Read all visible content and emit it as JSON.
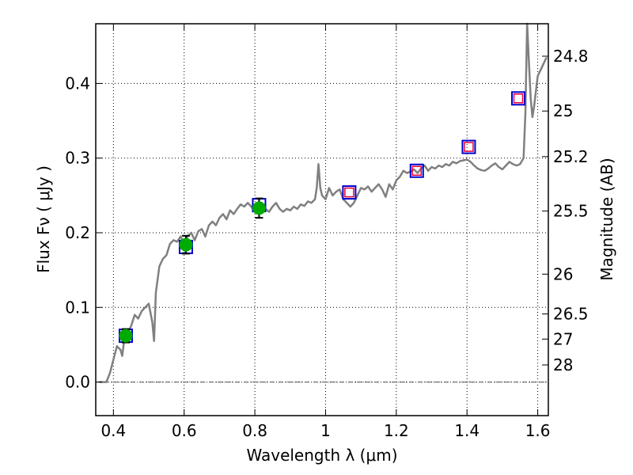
{
  "chart_data": {
    "type": "line",
    "xlabel": "Wavelength  λ (μm)",
    "ylabel_left": "Flux  Fν  ( μJy )",
    "ylabel_right": "Magnitude (AB)",
    "xlim": [
      0.35,
      1.63
    ],
    "ylim": [
      -0.045,
      0.48
    ],
    "x_ticks": [
      {
        "value": 0.4,
        "label": "0.4"
      },
      {
        "value": 0.6,
        "label": "0.6"
      },
      {
        "value": 0.8,
        "label": "0.8"
      },
      {
        "value": 1.0,
        "label": "1"
      },
      {
        "value": 1.2,
        "label": "1.2"
      },
      {
        "value": 1.4,
        "label": "1.4"
      },
      {
        "value": 1.6,
        "label": "1.6"
      }
    ],
    "y_ticks": [
      {
        "value": 0.0,
        "label": "0.0"
      },
      {
        "value": 0.1,
        "label": "0.1"
      },
      {
        "value": 0.2,
        "label": "0.2"
      },
      {
        "value": 0.3,
        "label": "0.3"
      },
      {
        "value": 0.4,
        "label": "0.4"
      }
    ],
    "mag_ticks": [
      {
        "value": 24.8,
        "label": "24.8"
      },
      {
        "value": 25.0,
        "label": "25"
      },
      {
        "value": 25.2,
        "label": "25.2"
      },
      {
        "value": 25.5,
        "label": "25.5"
      },
      {
        "value": 26.0,
        "label": "26"
      },
      {
        "value": 26.5,
        "label": "26.5"
      },
      {
        "value": 27.0,
        "label": "27"
      },
      {
        "value": 28.0,
        "label": "28"
      }
    ],
    "grid": true,
    "zero_line": true,
    "colors": {
      "spectrum": "#808080",
      "model_box": "#0000cc",
      "nir_box": "#e8003a",
      "measured_point": "#00aa00",
      "error_bar": "#000000"
    },
    "spectrum": [
      [
        0.36,
        0.0
      ],
      [
        0.38,
        0.0
      ],
      [
        0.39,
        0.012
      ],
      [
        0.4,
        0.03
      ],
      [
        0.41,
        0.048
      ],
      [
        0.42,
        0.043
      ],
      [
        0.425,
        0.035
      ],
      [
        0.43,
        0.055
      ],
      [
        0.44,
        0.065
      ],
      [
        0.45,
        0.075
      ],
      [
        0.46,
        0.09
      ],
      [
        0.47,
        0.085
      ],
      [
        0.48,
        0.095
      ],
      [
        0.49,
        0.1
      ],
      [
        0.5,
        0.105
      ],
      [
        0.51,
        0.08
      ],
      [
        0.515,
        0.055
      ],
      [
        0.52,
        0.12
      ],
      [
        0.53,
        0.155
      ],
      [
        0.54,
        0.165
      ],
      [
        0.55,
        0.17
      ],
      [
        0.56,
        0.185
      ],
      [
        0.57,
        0.19
      ],
      [
        0.58,
        0.188
      ],
      [
        0.59,
        0.195
      ],
      [
        0.6,
        0.185
      ],
      [
        0.61,
        0.195
      ],
      [
        0.62,
        0.2
      ],
      [
        0.63,
        0.19
      ],
      [
        0.64,
        0.202
      ],
      [
        0.65,
        0.205
      ],
      [
        0.66,
        0.195
      ],
      [
        0.67,
        0.21
      ],
      [
        0.68,
        0.215
      ],
      [
        0.69,
        0.21
      ],
      [
        0.7,
        0.22
      ],
      [
        0.71,
        0.225
      ],
      [
        0.72,
        0.218
      ],
      [
        0.73,
        0.23
      ],
      [
        0.74,
        0.225
      ],
      [
        0.75,
        0.232
      ],
      [
        0.76,
        0.238
      ],
      [
        0.77,
        0.235
      ],
      [
        0.78,
        0.24
      ],
      [
        0.79,
        0.235
      ],
      [
        0.8,
        0.228
      ],
      [
        0.81,
        0.235
      ],
      [
        0.82,
        0.24
      ],
      [
        0.83,
        0.232
      ],
      [
        0.84,
        0.228
      ],
      [
        0.85,
        0.235
      ],
      [
        0.86,
        0.24
      ],
      [
        0.87,
        0.232
      ],
      [
        0.88,
        0.228
      ],
      [
        0.89,
        0.232
      ],
      [
        0.9,
        0.23
      ],
      [
        0.91,
        0.235
      ],
      [
        0.92,
        0.232
      ],
      [
        0.93,
        0.238
      ],
      [
        0.94,
        0.236
      ],
      [
        0.95,
        0.242
      ],
      [
        0.96,
        0.24
      ],
      [
        0.97,
        0.245
      ],
      [
        0.975,
        0.26
      ],
      [
        0.98,
        0.292
      ],
      [
        0.985,
        0.26
      ],
      [
        0.99,
        0.25
      ],
      [
        1.0,
        0.245
      ],
      [
        1.01,
        0.26
      ],
      [
        1.02,
        0.25
      ],
      [
        1.03,
        0.255
      ],
      [
        1.04,
        0.258
      ],
      [
        1.05,
        0.245
      ],
      [
        1.06,
        0.24
      ],
      [
        1.07,
        0.235
      ],
      [
        1.08,
        0.24
      ],
      [
        1.09,
        0.25
      ],
      [
        1.1,
        0.26
      ],
      [
        1.11,
        0.258
      ],
      [
        1.12,
        0.262
      ],
      [
        1.13,
        0.255
      ],
      [
        1.14,
        0.26
      ],
      [
        1.15,
        0.265
      ],
      [
        1.16,
        0.258
      ],
      [
        1.17,
        0.248
      ],
      [
        1.18,
        0.265
      ],
      [
        1.19,
        0.258
      ],
      [
        1.2,
        0.27
      ],
      [
        1.21,
        0.275
      ],
      [
        1.22,
        0.283
      ],
      [
        1.23,
        0.28
      ],
      [
        1.24,
        0.282
      ],
      [
        1.25,
        0.285
      ],
      [
        1.26,
        0.28
      ],
      [
        1.27,
        0.286
      ],
      [
        1.28,
        0.29
      ],
      [
        1.29,
        0.283
      ],
      [
        1.3,
        0.288
      ],
      [
        1.31,
        0.286
      ],
      [
        1.32,
        0.29
      ],
      [
        1.33,
        0.288
      ],
      [
        1.34,
        0.292
      ],
      [
        1.35,
        0.29
      ],
      [
        1.36,
        0.295
      ],
      [
        1.37,
        0.293
      ],
      [
        1.38,
        0.296
      ],
      [
        1.39,
        0.297
      ],
      [
        1.4,
        0.298
      ],
      [
        1.41,
        0.295
      ],
      [
        1.42,
        0.29
      ],
      [
        1.43,
        0.286
      ],
      [
        1.44,
        0.284
      ],
      [
        1.45,
        0.283
      ],
      [
        1.46,
        0.286
      ],
      [
        1.47,
        0.29
      ],
      [
        1.48,
        0.293
      ],
      [
        1.49,
        0.288
      ],
      [
        1.5,
        0.285
      ],
      [
        1.51,
        0.29
      ],
      [
        1.52,
        0.295
      ],
      [
        1.53,
        0.292
      ],
      [
        1.54,
        0.29
      ],
      [
        1.55,
        0.292
      ],
      [
        1.56,
        0.3
      ],
      [
        1.565,
        0.36
      ],
      [
        1.57,
        0.48
      ],
      [
        1.575,
        0.43
      ],
      [
        1.58,
        0.38
      ],
      [
        1.585,
        0.355
      ],
      [
        1.59,
        0.37
      ],
      [
        1.6,
        0.41
      ],
      [
        1.61,
        0.42
      ],
      [
        1.62,
        0.43
      ],
      [
        1.625,
        0.435
      ]
    ],
    "model_points": [
      {
        "x": 0.435,
        "y": 0.062
      },
      {
        "x": 0.605,
        "y": 0.181
      },
      {
        "x": 0.812,
        "y": 0.237
      },
      {
        "x": 1.067,
        "y": 0.254
      },
      {
        "x": 1.258,
        "y": 0.283
      },
      {
        "x": 1.405,
        "y": 0.315
      },
      {
        "x": 1.545,
        "y": 0.38
      }
    ],
    "nir_predicted_points": [
      {
        "x": 1.067,
        "y": 0.254
      },
      {
        "x": 1.258,
        "y": 0.283
      },
      {
        "x": 1.405,
        "y": 0.315
      },
      {
        "x": 1.545,
        "y": 0.38
      }
    ],
    "measured_points": [
      {
        "x": 0.435,
        "y": 0.062,
        "err": 0.009
      },
      {
        "x": 0.605,
        "y": 0.184,
        "err": 0.012
      },
      {
        "x": 0.812,
        "y": 0.233,
        "err": 0.013
      }
    ]
  }
}
